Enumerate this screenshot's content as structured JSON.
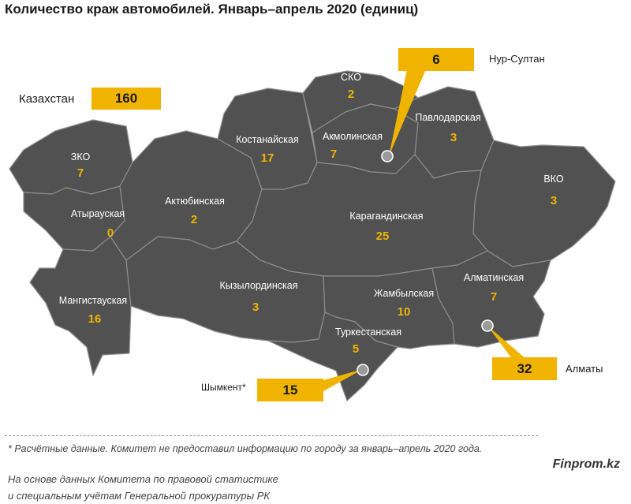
{
  "title": "Количество краж автомобилей. Январь–апрель 2020  (единиц)",
  "total": {
    "label": "Казахстан",
    "value": "160"
  },
  "regions": [
    {
      "name": "ЗКО",
      "value": "7"
    },
    {
      "name": "Атырауская",
      "value": "0"
    },
    {
      "name": "Мангистауская",
      "value": "16"
    },
    {
      "name": "Актюбинская",
      "value": "2"
    },
    {
      "name": "Костанайская",
      "value": "17"
    },
    {
      "name": "СКО",
      "value": "2"
    },
    {
      "name": "Акмолинская",
      "value": "7"
    },
    {
      "name": "Павлодарская",
      "value": "3"
    },
    {
      "name": "ВКО",
      "value": "3"
    },
    {
      "name": "Карагандинская",
      "value": "25"
    },
    {
      "name": "Кызылординская",
      "value": "3"
    },
    {
      "name": "Жамбылская",
      "value": "10"
    },
    {
      "name": "Алматинская",
      "value": "7"
    },
    {
      "name": "Туркестанская",
      "value": "5"
    }
  ],
  "cities": [
    {
      "name": "Нур-Султан",
      "value": "6"
    },
    {
      "name": "Алматы",
      "value": "32"
    },
    {
      "name": "Шымкент*",
      "value": "15"
    }
  ],
  "colors": {
    "region_fill": "#515151",
    "border": "#8d8d8d",
    "accent": "#f0b400",
    "label": "#ffffff"
  },
  "footnote": "* Расчётные данные. Комитет не предоставил информацию по городу за январь–апрель 2020 года.",
  "source_lines": [
    "На основе данных Комитета по правовой статистике",
    "и специальным учётам Генеральной прокуратуры РК"
  ],
  "brand": "Finprom.kz"
}
